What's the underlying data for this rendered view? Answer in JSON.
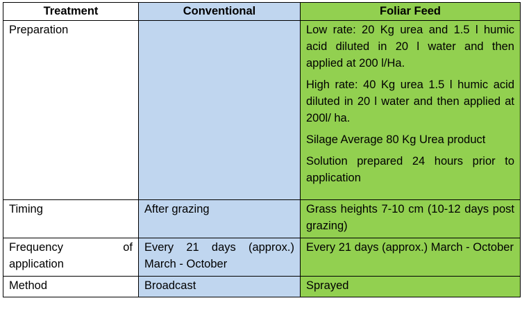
{
  "table": {
    "headers": {
      "treatment": "Treatment",
      "conventional": "Conventional",
      "foliar": "Foliar Feed"
    },
    "rows": {
      "preparation": {
        "label": "Preparation",
        "conventional": "",
        "foliar": [
          "Low rate: 20 Kg urea and 1.5 l humic acid diluted in 20 l water and then applied at 200 l/Ha.",
          "High rate: 40 Kg urea 1.5 l humic acid diluted in 20 l water and then applied at 200l/ ha.",
          "Silage Average 80 Kg Urea product",
          "Solution prepared 24 hours prior to application"
        ]
      },
      "timing": {
        "label": "Timing",
        "conventional": "After grazing",
        "foliar": "Grass heights 7-10 cm (10-12 days post grazing)"
      },
      "frequency": {
        "label_part1": "Frequency",
        "label_part2": "of",
        "label_part3": "application",
        "conventional": "Every 21 days (approx.) March - October",
        "foliar": "Every 21 days (approx.) March - October"
      },
      "method": {
        "label": "Method",
        "conventional": "Broadcast",
        "foliar": "Sprayed"
      }
    },
    "colors": {
      "conventional_bg": "#c0d6ef",
      "foliar_bg": "#92d050"
    }
  }
}
